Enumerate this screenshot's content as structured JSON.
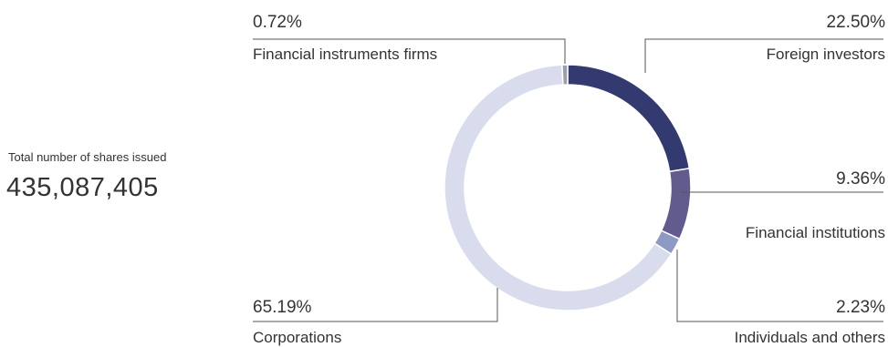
{
  "summary": {
    "caption": "Total number of shares issued",
    "value": "435,087,405"
  },
  "chart_data": {
    "type": "pie",
    "variant": "donut",
    "unit": "%",
    "slices": [
      {
        "name": "Foreign investors",
        "value": 22.5,
        "label": "22.50%",
        "color": "#333a70"
      },
      {
        "name": "Financial institutions",
        "value": 9.36,
        "label": "9.36%",
        "color": "#625b8d"
      },
      {
        "name": "Individuals and others",
        "value": 2.23,
        "label": "2.23%",
        "color": "#8d9bc4"
      },
      {
        "name": "Corporations",
        "value": 65.19,
        "label": "65.19%",
        "color": "#d9dced"
      },
      {
        "name": "Financial instruments firms",
        "value": 0.72,
        "label": "0.72%",
        "color": "#9d9ea8"
      }
    ],
    "start": "top",
    "direction": "clockwise"
  }
}
